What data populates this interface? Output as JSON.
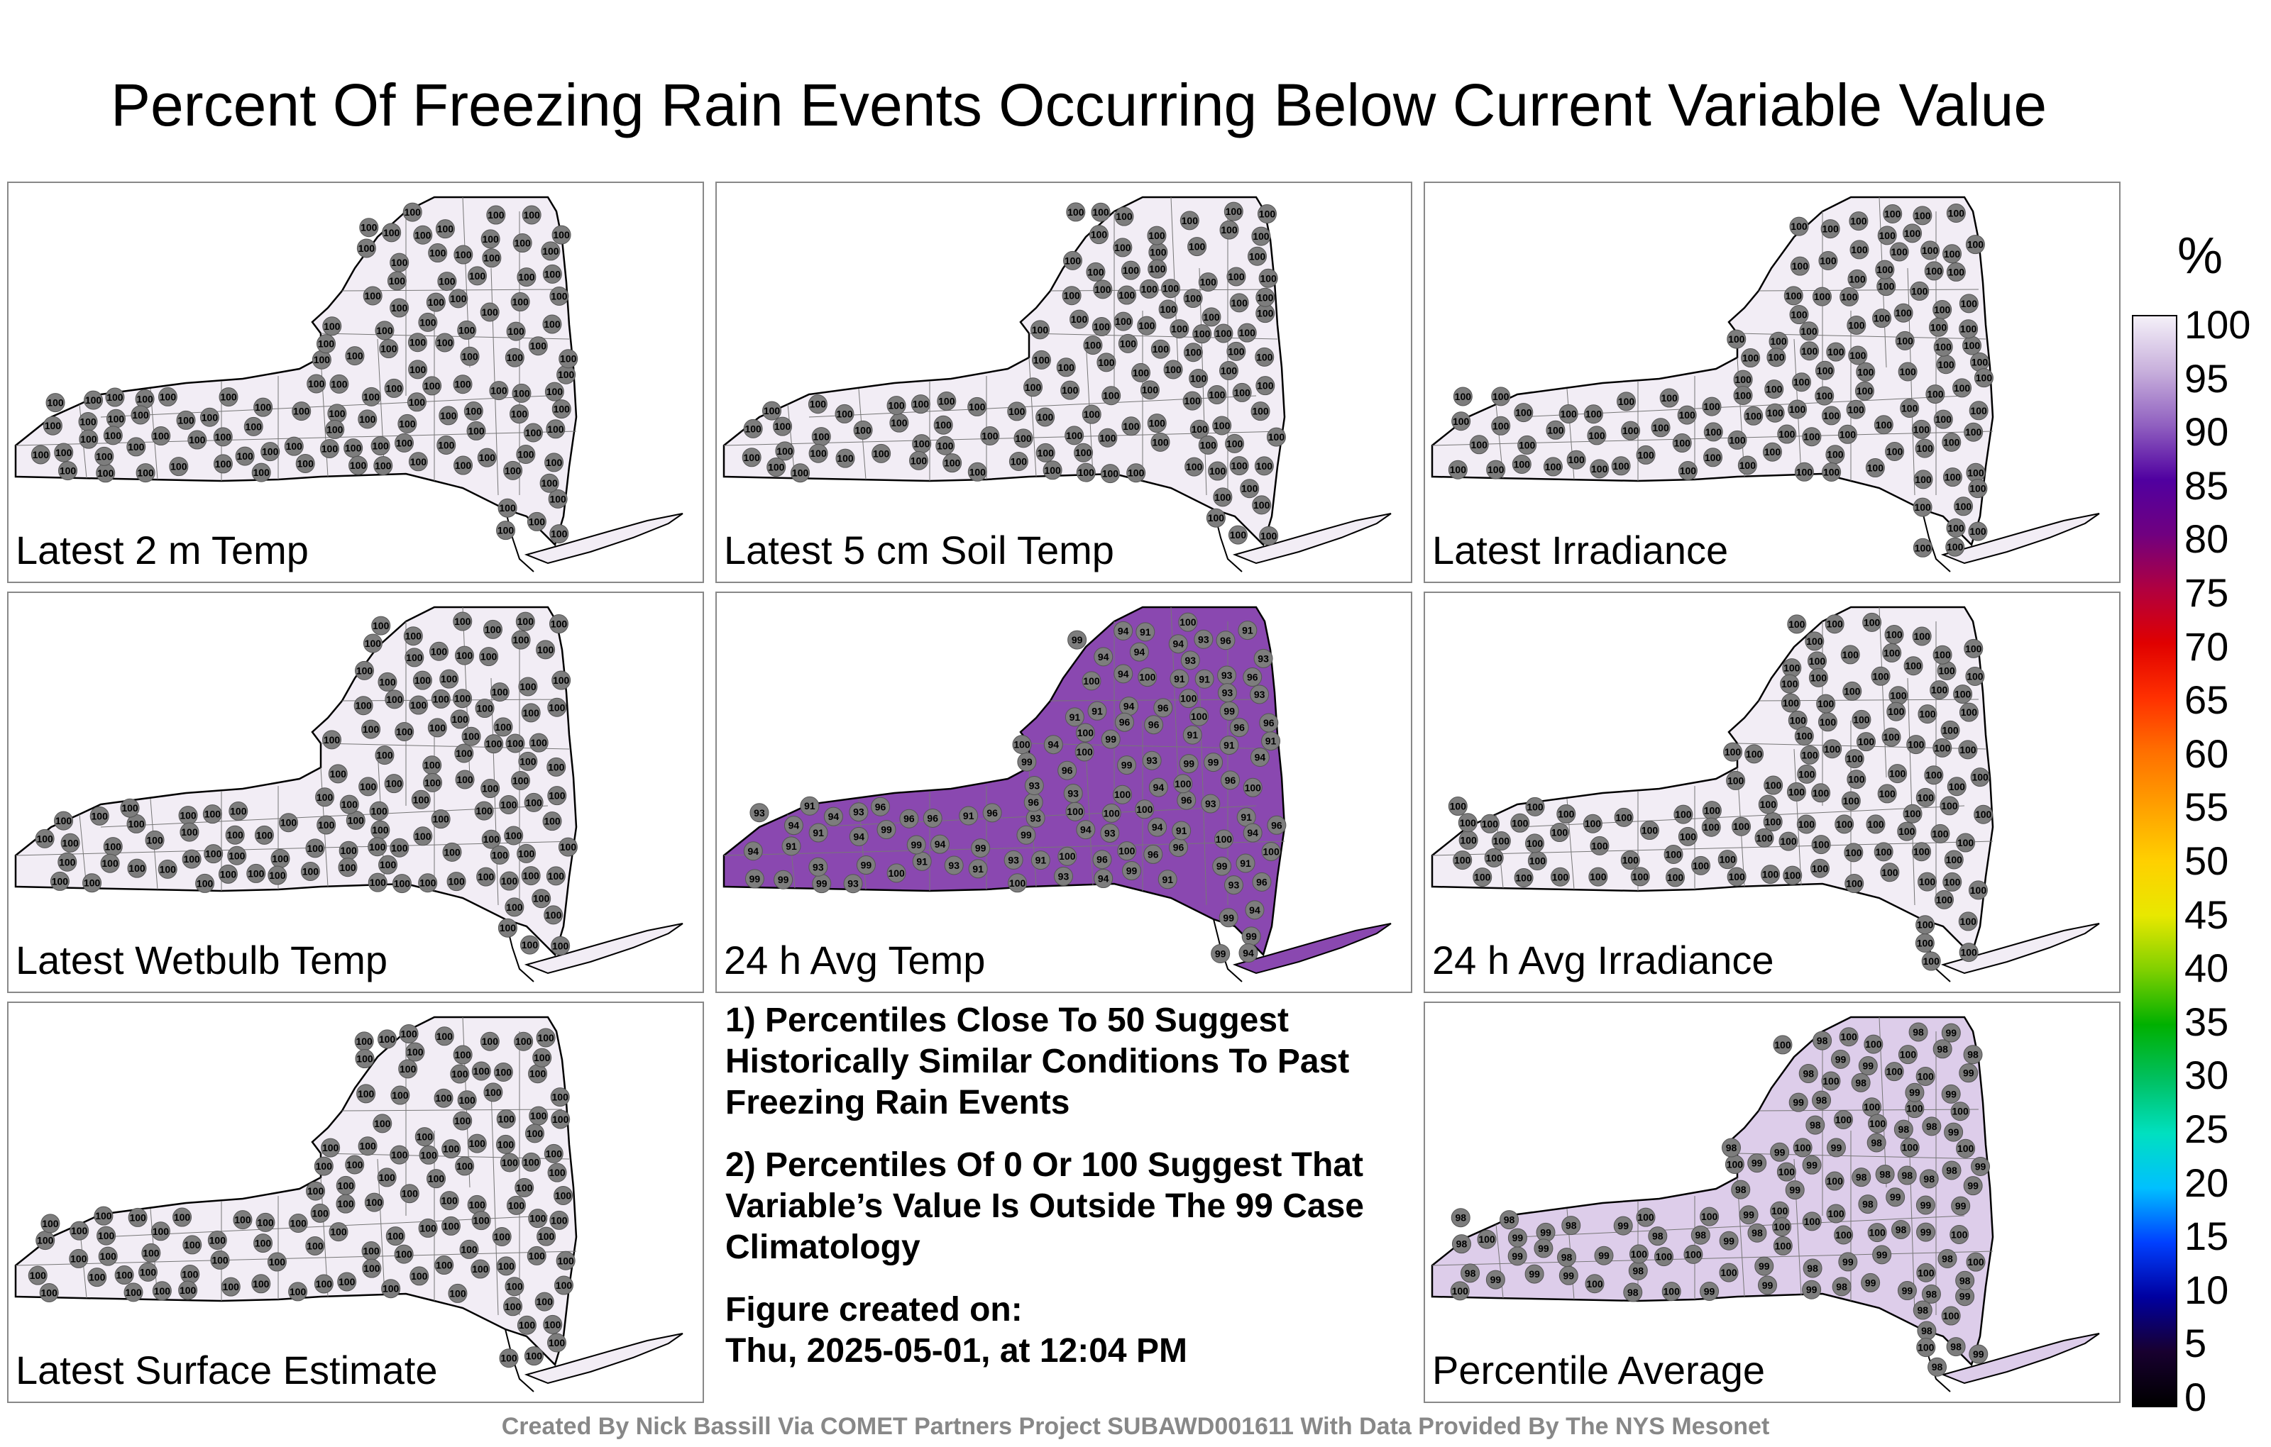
{
  "title": "Percent Of Freezing Rain Events Occurring Below Current Variable Value",
  "panels": [
    {
      "label": "Latest 2 m Temp",
      "fill": "#f2edf5",
      "values": [
        "100"
      ]
    },
    {
      "label": "Latest 5 cm Soil Temp",
      "fill": "#f2edf5",
      "values": [
        "100"
      ]
    },
    {
      "label": "Latest Irradiance",
      "fill": "#f2edf5",
      "values": [
        "100"
      ]
    },
    {
      "label": "Latest Wetbulb Temp",
      "fill": "#f2edf5",
      "values": [
        "100"
      ]
    },
    {
      "label": "24 h Avg Temp",
      "fill": "#8a48b0",
      "values": [
        "93",
        "94",
        "96",
        "99",
        "91",
        "100"
      ]
    },
    {
      "label": "24 h Avg Irradiance",
      "fill": "#f2edf5",
      "values": [
        "100"
      ]
    },
    {
      "label": "Latest Surface Estimate",
      "fill": "#f2edf5",
      "values": [
        "100"
      ]
    },
    {
      "label": "Percentile Average",
      "fill": "#ddcdea",
      "values": [
        "99",
        "100",
        "98"
      ]
    }
  ],
  "notes": [
    "1) Percentiles Close To 50 Suggest Historically Similar Conditions To Past Freezing Rain Events",
    "2) Percentiles Of 0 Or 100 Suggest That Variable’s Value Is Outside The 99 Case Climatology"
  ],
  "figure_created_label": "Figure created on:",
  "figure_created_value": "Thu, 2025-05-01, at 12:04 PM",
  "footer": "Created By Nick Bassill Via COMET Partners Project SUBAWD001611 With Data Provided By The NYS Mesonet",
  "colorbar": {
    "unit": "%",
    "ticks": [
      "0",
      "5",
      "10",
      "15",
      "20",
      "25",
      "30",
      "35",
      "40",
      "45",
      "50",
      "55",
      "60",
      "65",
      "70",
      "75",
      "80",
      "85",
      "90",
      "95",
      "100"
    ],
    "stops": [
      "#000000",
      "#180030",
      "#0000a0",
      "#0040ff",
      "#00c0ff",
      "#00e0c0",
      "#00c060",
      "#00b000",
      "#80d000",
      "#e8e800",
      "#ffd000",
      "#ffa000",
      "#ff7000",
      "#ff3000",
      "#e00000",
      "#b00040",
      "#700080",
      "#5000a0",
      "#9060c0",
      "#c8b0dc",
      "#f4f0f8"
    ]
  }
}
